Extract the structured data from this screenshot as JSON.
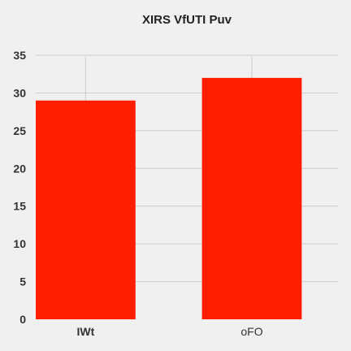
{
  "chart_data": {
    "type": "bar",
    "title": "XIRS VfUTI Puv",
    "xlabel": "",
    "ylabel": "",
    "categories": [
      "IWt",
      "oFO"
    ],
    "values": [
      29,
      32
    ],
    "ylim": [
      0,
      35
    ],
    "yticks": [
      0,
      5,
      10,
      15,
      20,
      25,
      30,
      35
    ],
    "grid": true,
    "legend": "none",
    "bar_color": "#ff1e00",
    "background": "#f0f0f0"
  }
}
